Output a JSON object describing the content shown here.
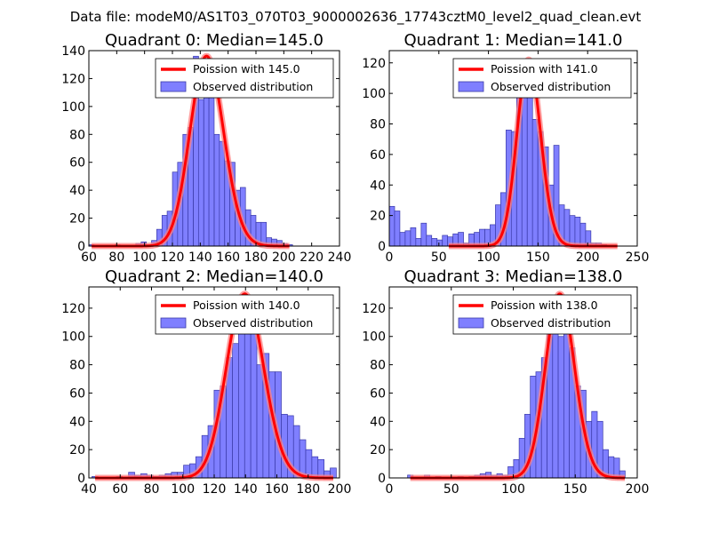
{
  "figure": {
    "suptitle": "Data file: modeM0/AS1T03_070T03_9000002636_17743cztM0_level2_quad_clean.evt"
  },
  "colors": {
    "histogram_fill": "#7f7fff",
    "histogram_edge": "#3a3aa8",
    "poisson_line": "#ff0000",
    "poisson_glow": "#ff8080"
  },
  "chart_data": [
    {
      "type": "bar",
      "title": "Quadrant 0: Median=145.0",
      "median": 145.0,
      "xlim": [
        60,
        240
      ],
      "ylim": [
        0,
        140
      ],
      "xticks": [
        60,
        80,
        100,
        120,
        140,
        160,
        180,
        200,
        220,
        240
      ],
      "yticks": [
        0,
        20,
        40,
        60,
        80,
        100,
        120,
        140
      ],
      "bin_width": 3.75,
      "hist_x": [
        61.9,
        65.6,
        69.4,
        73.1,
        76.9,
        80.6,
        84.4,
        88.1,
        91.9,
        95.6,
        99.4,
        103.1,
        106.9,
        110.6,
        114.4,
        118.1,
        121.9,
        125.6,
        129.4,
        133.1,
        136.9,
        140.6,
        144.4,
        148.1,
        151.9,
        155.6,
        159.4,
        163.1,
        166.9,
        170.6,
        174.4,
        178.1,
        181.9,
        185.6,
        189.4,
        193.1,
        196.9,
        200.6,
        204.4
      ],
      "hist_y": [
        1,
        0,
        0,
        0,
        0,
        1,
        0,
        0,
        0,
        2,
        3,
        1,
        4,
        12,
        22,
        25,
        53,
        60,
        80,
        85,
        136,
        105,
        115,
        118,
        80,
        75,
        61,
        60,
        40,
        42,
        26,
        22,
        17,
        17,
        6,
        5,
        4,
        2,
        1
      ],
      "poisson_lambda": 145.0,
      "poisson_peak": 136,
      "poisson_x_range": [
        62,
        204
      ],
      "legend": [
        "Poission with 145.0",
        "Observed distribution"
      ],
      "legend_position": "top-right"
    },
    {
      "type": "bar",
      "title": "Quadrant 1: Median=141.0",
      "median": 141.0,
      "xlim": [
        0,
        250
      ],
      "ylim": [
        0,
        128
      ],
      "xticks": [
        0,
        50,
        100,
        150,
        200,
        250
      ],
      "yticks": [
        0,
        20,
        40,
        60,
        80,
        100,
        120
      ],
      "bin_width": 5.35,
      "hist_x": [
        2.7,
        8.0,
        13.4,
        18.7,
        24.1,
        29.4,
        34.8,
        40.1,
        45.5,
        50.8,
        56.2,
        61.5,
        66.9,
        72.2,
        77.6,
        82.9,
        88.3,
        93.6,
        99.0,
        104.3,
        109.7,
        115.0,
        120.4,
        125.7,
        131.1,
        136.4,
        141.8,
        147.1,
        152.5,
        157.8,
        163.2,
        168.5,
        173.9,
        179.2,
        184.6,
        189.9,
        195.3,
        200.6,
        206.0,
        211.3,
        216.7
      ],
      "hist_y": [
        26,
        23,
        9,
        10,
        12,
        5,
        15,
        7,
        5,
        4,
        7,
        6,
        8,
        9,
        2,
        8,
        9,
        11,
        11,
        14,
        27,
        35,
        76,
        75,
        120,
        110,
        108,
        83,
        75,
        65,
        40,
        66,
        27,
        24,
        20,
        19,
        15,
        10,
        2,
        2,
        1
      ],
      "poisson_lambda": 141.0,
      "poisson_peak": 122,
      "poisson_x_range": [
        60,
        230
      ],
      "legend": [
        "Poission with 141.0",
        "Observed distribution"
      ],
      "legend_position": "top-right"
    },
    {
      "type": "bar",
      "title": "Quadrant 2: Median=140.0",
      "median": 140.0,
      "xlim": [
        40,
        200
      ],
      "ylim": [
        0,
        135
      ],
      "xticks": [
        40,
        60,
        80,
        100,
        120,
        140,
        160,
        180,
        200
      ],
      "yticks": [
        0,
        20,
        40,
        60,
        80,
        100,
        120
      ],
      "bin_width": 3.9,
      "hist_x": [
        43.9,
        47.8,
        51.7,
        55.6,
        59.5,
        63.4,
        67.3,
        71.2,
        75.1,
        79.0,
        82.9,
        86.8,
        90.7,
        94.6,
        98.5,
        102.4,
        106.3,
        110.2,
        114.1,
        118.0,
        121.9,
        125.8,
        129.7,
        133.6,
        137.5,
        141.4,
        145.3,
        149.2,
        153.1,
        157.0,
        160.9,
        164.8,
        168.7,
        172.6,
        176.5,
        180.4,
        184.3,
        188.2,
        192.1,
        196.0
      ],
      "hist_y": [
        1,
        0,
        0,
        0,
        1,
        0,
        4,
        2,
        3,
        2,
        1,
        2,
        3,
        4,
        4,
        9,
        10,
        15,
        30,
        37,
        62,
        65,
        85,
        95,
        110,
        113,
        110,
        80,
        88,
        75,
        75,
        45,
        44,
        37,
        27,
        20,
        15,
        13,
        5,
        7
      ],
      "poisson_lambda": 140.0,
      "poisson_peak": 130,
      "poisson_x_range": [
        44,
        196
      ],
      "legend": [
        "Poission with 140.0",
        "Observed distribution"
      ],
      "legend_position": "top-right"
    },
    {
      "type": "bar",
      "title": "Quadrant 3: Median=138.0",
      "median": 138.0,
      "xlim": [
        0,
        200
      ],
      "ylim": [
        0,
        135
      ],
      "xticks": [
        0,
        50,
        100,
        150,
        200
      ],
      "yticks": [
        0,
        20,
        40,
        60,
        80,
        100,
        120
      ],
      "bin_width": 4.5,
      "hist_x": [
        17.0,
        21.5,
        26.0,
        30.5,
        35.0,
        39.5,
        44.0,
        48.5,
        53.0,
        57.5,
        62.0,
        66.5,
        71.0,
        75.5,
        80.0,
        84.5,
        89.0,
        93.5,
        98.0,
        102.5,
        107.0,
        111.5,
        116.0,
        120.5,
        125.0,
        129.5,
        134.0,
        138.5,
        143.0,
        147.5,
        152.0,
        156.5,
        161.0,
        165.5,
        170.0,
        174.5,
        179.0,
        183.5,
        188.0
      ],
      "hist_y": [
        2,
        0,
        0,
        2,
        0,
        1,
        0,
        0,
        0,
        1,
        0,
        1,
        2,
        3,
        4,
        2,
        3,
        2,
        8,
        13,
        28,
        45,
        72,
        75,
        85,
        108,
        127,
        100,
        115,
        92,
        65,
        62,
        40,
        47,
        40,
        20,
        15,
        14,
        5
      ],
      "poisson_lambda": 138.0,
      "poisson_peak": 130,
      "poisson_x_range": [
        17,
        190
      ],
      "legend": [
        "Poission with 138.0",
        "Observed distribution"
      ],
      "legend_position": "top-right"
    }
  ]
}
